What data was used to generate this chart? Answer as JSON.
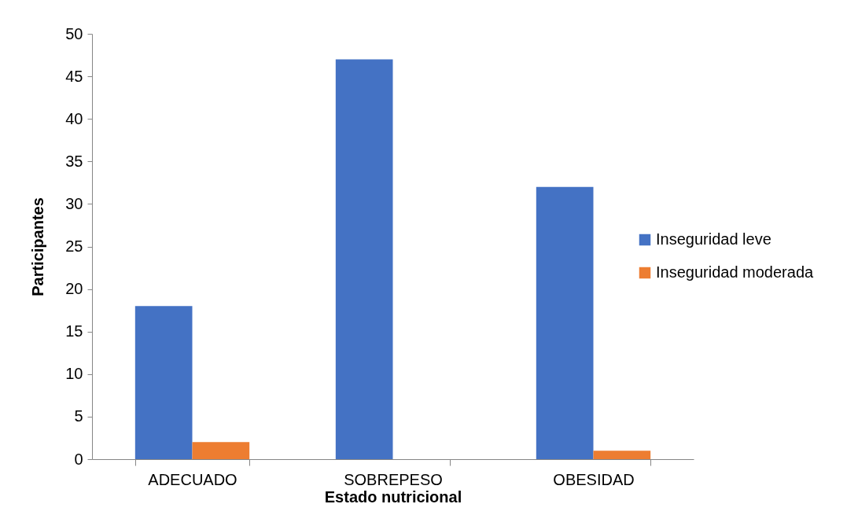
{
  "chart_data": {
    "type": "bar",
    "xlabel": "Estado nutricional",
    "ylabel": "Participantes",
    "categories": [
      "ADECUADO",
      "SOBREPESO",
      "OBESIDAD"
    ],
    "series": [
      {
        "name": "Inseguridad leve",
        "color": "#4472c4",
        "values": [
          18,
          47,
          32
        ]
      },
      {
        "name": "Inseguridad moderada",
        "color": "#ed7d31",
        "values": [
          2,
          null,
          1
        ]
      }
    ],
    "ylim": [
      0,
      50
    ],
    "yticks": [
      0,
      5,
      10,
      15,
      20,
      25,
      30,
      35,
      40,
      45,
      50
    ],
    "grid": false,
    "legend": "right"
  }
}
